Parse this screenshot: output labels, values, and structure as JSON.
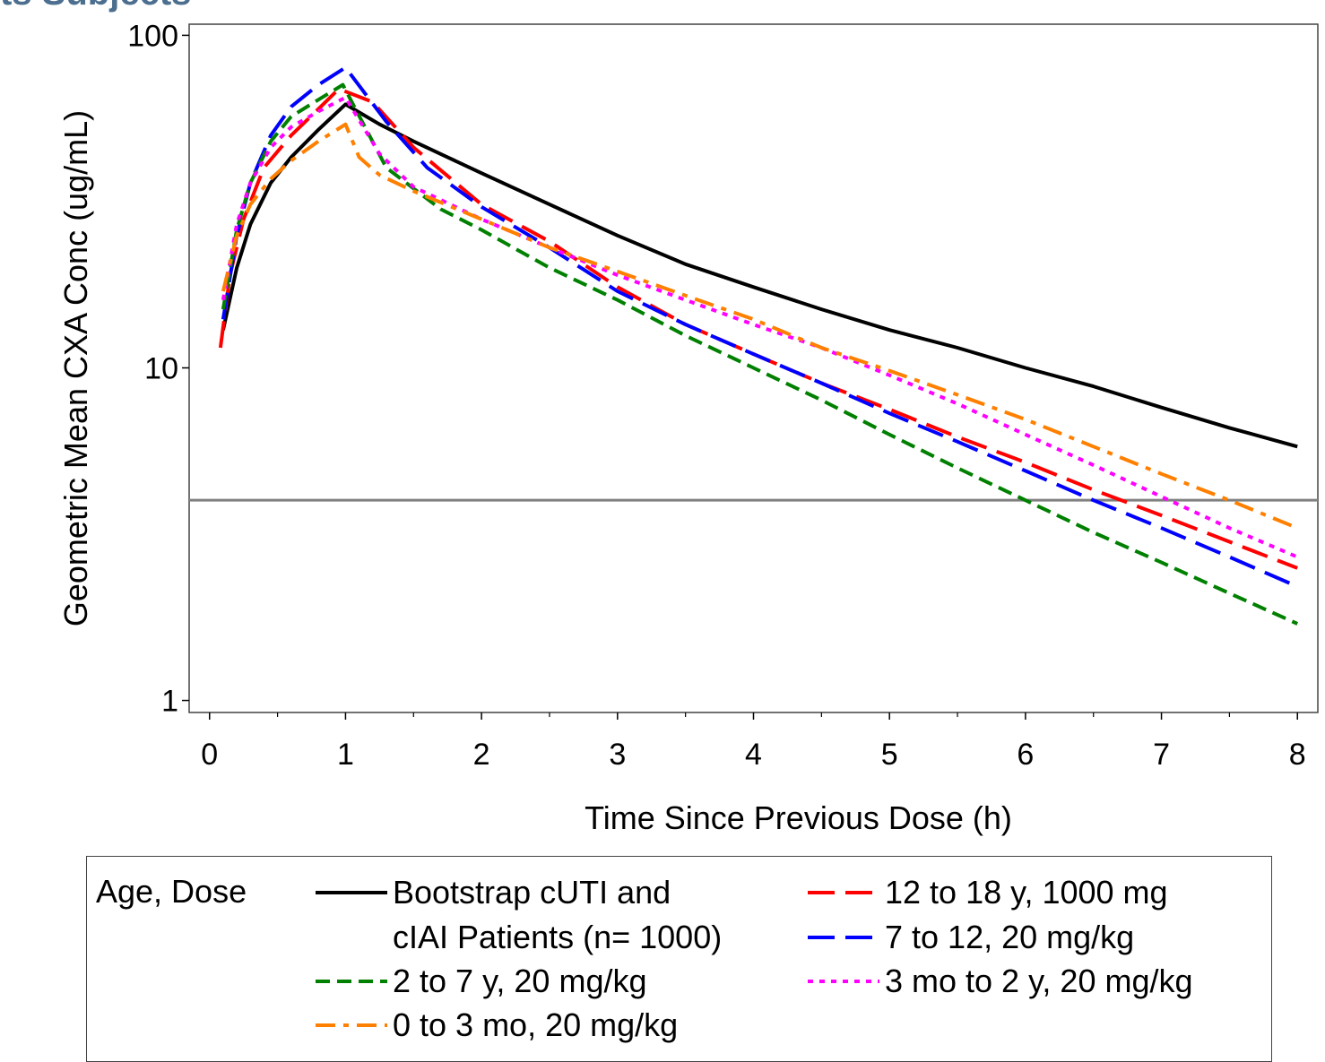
{
  "page": {
    "title": "ts Subjects"
  },
  "chart_data": {
    "type": "line",
    "xlabel": "Time Since Previous Dose (h)",
    "ylabel": "Geometric Mean CXA Conc (ug/mL)",
    "xlim": [
      -0.15,
      8.15
    ],
    "ylim": [
      0.92,
      108
    ],
    "yscale": "log",
    "x_ticks": [
      "0",
      "1",
      "2",
      "3",
      "4",
      "5",
      "6",
      "7",
      "8"
    ],
    "y_ticks": [
      "1",
      "10",
      "100"
    ],
    "reference_line_y": 4,
    "legend_title": "Age, Dose",
    "legend_position": "bottom",
    "series": [
      {
        "name": "Bootstrap cUTI and cIAI Patients (n= 1000)",
        "color": "#000000",
        "dash": "solid",
        "x": [
          0.1,
          0.2,
          0.3,
          0.45,
          0.6,
          0.8,
          1.0,
          1.25,
          1.5,
          1.75,
          2.0,
          2.5,
          3.0,
          3.5,
          4.0,
          4.5,
          5.0,
          5.5,
          6.0,
          6.5,
          7.0,
          7.5,
          8.0
        ],
        "y": [
          13.0,
          20.0,
          27.0,
          36.0,
          43.0,
          52.0,
          62.0,
          54.0,
          48.0,
          43.0,
          38.5,
          31.0,
          25.0,
          20.5,
          17.5,
          15.0,
          13.0,
          11.5,
          10.0,
          8.8,
          7.6,
          6.6,
          5.8
        ]
      },
      {
        "name": "12 to 18 y, 1000 mg",
        "color": "#ff0000",
        "dash": "longdash",
        "x": [
          0.08,
          0.15,
          0.25,
          0.4,
          0.6,
          0.8,
          0.95,
          1.2,
          1.5,
          2.0,
          2.5,
          3.0,
          3.5,
          4.0,
          4.5,
          5.0,
          5.5,
          6.0,
          6.5,
          7.0,
          7.5,
          8.0
        ],
        "y": [
          11.5,
          19.0,
          28.0,
          40.0,
          50.0,
          60.0,
          69.0,
          63.0,
          46.0,
          31.0,
          24.0,
          17.5,
          13.5,
          11.0,
          9.0,
          7.5,
          6.2,
          5.2,
          4.3,
          3.6,
          3.0,
          2.5
        ]
      },
      {
        "name": "7 to 12, 20 mg/kg",
        "color": "#0000ff",
        "dash": "longdash",
        "x": [
          0.1,
          0.2,
          0.3,
          0.45,
          0.6,
          0.8,
          1.0,
          1.3,
          1.6,
          2.0,
          2.5,
          3.0,
          3.5,
          4.0,
          4.5,
          5.0,
          5.5,
          6.0,
          6.5,
          7.0,
          7.5,
          8.0
        ],
        "y": [
          14.0,
          25.0,
          36.0,
          50.0,
          61.0,
          71.0,
          80.0,
          55.0,
          40.0,
          30.5,
          23.0,
          17.0,
          13.5,
          11.0,
          9.0,
          7.3,
          6.0,
          4.9,
          4.0,
          3.3,
          2.7,
          2.2
        ]
      },
      {
        "name": "2 to 7 y, 20 mg/kg",
        "color": "#008000",
        "dash": "shortdash",
        "x": [
          0.1,
          0.2,
          0.3,
          0.45,
          0.6,
          0.8,
          0.98,
          1.3,
          1.7,
          2.0,
          2.5,
          3.0,
          3.5,
          4.0,
          4.5,
          5.0,
          5.5,
          6.0,
          6.5,
          7.0,
          7.5,
          8.0
        ],
        "y": [
          15.0,
          26.0,
          36.0,
          48.0,
          57.0,
          64.0,
          71.0,
          40.0,
          30.0,
          26.0,
          20.0,
          16.0,
          12.5,
          10.0,
          8.0,
          6.3,
          5.0,
          4.0,
          3.2,
          2.6,
          2.1,
          1.7
        ]
      },
      {
        "name": "3 mo to 2 y, 20 mg/kg",
        "color": "#ff00ff",
        "dash": "dot",
        "x": [
          0.1,
          0.2,
          0.3,
          0.45,
          0.6,
          0.8,
          1.0,
          1.25,
          1.5,
          2.0,
          2.5,
          3.0,
          3.5,
          4.0,
          4.5,
          5.0,
          5.5,
          6.0,
          6.5,
          7.0,
          7.5,
          8.0
        ],
        "y": [
          16.0,
          27.0,
          36.0,
          46.0,
          53.0,
          59.0,
          65.0,
          44.0,
          35.0,
          28.0,
          23.0,
          19.0,
          16.0,
          13.5,
          11.5,
          9.5,
          7.8,
          6.3,
          5.1,
          4.1,
          3.3,
          2.7
        ]
      },
      {
        "name": "0 to 3 mo, 20 mg/kg",
        "color": "#ff8000",
        "dash": "dashdot",
        "x": [
          0.1,
          0.2,
          0.3,
          0.45,
          0.6,
          0.8,
          1.0,
          1.1,
          1.25,
          1.5,
          2.0,
          2.5,
          3.0,
          3.5,
          4.0,
          4.5,
          5.0,
          5.5,
          6.0,
          6.5,
          7.0,
          7.5,
          8.0
        ],
        "y": [
          17.0,
          25.0,
          31.0,
          37.0,
          42.0,
          48.0,
          54.0,
          43.0,
          38.0,
          34.0,
          28.0,
          23.0,
          19.5,
          16.5,
          14.0,
          11.5,
          9.8,
          8.3,
          7.0,
          5.8,
          4.8,
          4.0,
          3.3
        ]
      }
    ]
  },
  "legend": {
    "heading": "Age, Dose",
    "items": [
      {
        "label": "Bootstrap cUTI and\ncIAI Patients (n= 1000)",
        "color": "#000000",
        "dash": "solid"
      },
      {
        "label": "12 to 18 y, 1000 mg",
        "color": "#ff0000",
        "dash": "longdash"
      },
      {
        "label": "2 to 7 y, 20 mg/kg",
        "color": "#008000",
        "dash": "shortdash"
      },
      {
        "label": "7 to 12, 20 mg/kg",
        "color": "#0000ff",
        "dash": "longdash"
      },
      {
        "label": "0 to 3 mo, 20 mg/kg",
        "color": "#ff8000",
        "dash": "dashdot"
      },
      {
        "label": "3 mo to 2 y, 20 mg/kg",
        "color": "#ff00ff",
        "dash": "dot"
      }
    ]
  }
}
